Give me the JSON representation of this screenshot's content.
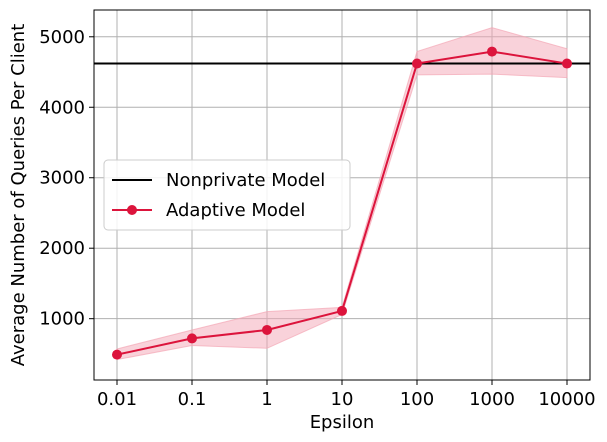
{
  "chart_data": {
    "type": "line",
    "title": "",
    "xlabel": "Epsilon",
    "ylabel": "Average Number of Queries Per Client",
    "x_categories": [
      "0.01",
      "0.1",
      "1",
      "10",
      "100",
      "1000",
      "10000"
    ],
    "ylim": [
      130,
      5380
    ],
    "yticks": [
      1000,
      2000,
      3000,
      4000,
      5000
    ],
    "grid": true,
    "legend_position": "center-left",
    "series": [
      {
        "name": "Nonprivate Model",
        "kind": "hline",
        "value": 4620,
        "color": "#000000"
      },
      {
        "name": "Adaptive Model",
        "kind": "line",
        "color": "#dc143c",
        "band_color": "#f4a6b5",
        "values": [
          490,
          720,
          840,
          1110,
          4620,
          4790,
          4620
        ],
        "lower": [
          420,
          620,
          580,
          1060,
          4460,
          4470,
          4420
        ],
        "upper": [
          570,
          840,
          1100,
          1160,
          4790,
          5130,
          4830
        ]
      }
    ]
  }
}
